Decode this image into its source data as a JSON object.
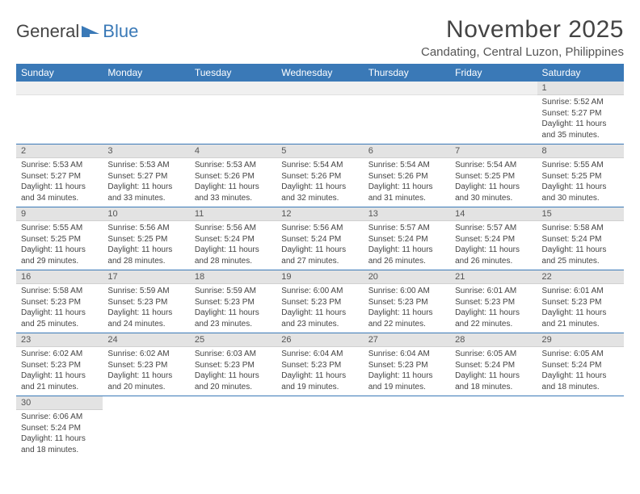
{
  "brand": {
    "part1": "General",
    "part2": "Blue"
  },
  "title": "November 2025",
  "subtitle": "Candating, Central Luzon, Philippines",
  "colors": {
    "header_bg": "#3a79b7",
    "header_fg": "#ffffff",
    "daynum_bg": "#e3e3e3",
    "row_divider": "#3a79b7",
    "text": "#444444"
  },
  "day_headers": [
    "Sunday",
    "Monday",
    "Tuesday",
    "Wednesday",
    "Thursday",
    "Friday",
    "Saturday"
  ],
  "weeks": [
    [
      {
        "n": "",
        "blank": true
      },
      {
        "n": "",
        "blank": true
      },
      {
        "n": "",
        "blank": true
      },
      {
        "n": "",
        "blank": true
      },
      {
        "n": "",
        "blank": true
      },
      {
        "n": "",
        "blank": true
      },
      {
        "n": "1",
        "sunrise": "5:52 AM",
        "sunset": "5:27 PM",
        "daylight": "11 hours and 35 minutes."
      }
    ],
    [
      {
        "n": "2",
        "sunrise": "5:53 AM",
        "sunset": "5:27 PM",
        "daylight": "11 hours and 34 minutes."
      },
      {
        "n": "3",
        "sunrise": "5:53 AM",
        "sunset": "5:27 PM",
        "daylight": "11 hours and 33 minutes."
      },
      {
        "n": "4",
        "sunrise": "5:53 AM",
        "sunset": "5:26 PM",
        "daylight": "11 hours and 33 minutes."
      },
      {
        "n": "5",
        "sunrise": "5:54 AM",
        "sunset": "5:26 PM",
        "daylight": "11 hours and 32 minutes."
      },
      {
        "n": "6",
        "sunrise": "5:54 AM",
        "sunset": "5:26 PM",
        "daylight": "11 hours and 31 minutes."
      },
      {
        "n": "7",
        "sunrise": "5:54 AM",
        "sunset": "5:25 PM",
        "daylight": "11 hours and 30 minutes."
      },
      {
        "n": "8",
        "sunrise": "5:55 AM",
        "sunset": "5:25 PM",
        "daylight": "11 hours and 30 minutes."
      }
    ],
    [
      {
        "n": "9",
        "sunrise": "5:55 AM",
        "sunset": "5:25 PM",
        "daylight": "11 hours and 29 minutes."
      },
      {
        "n": "10",
        "sunrise": "5:56 AM",
        "sunset": "5:25 PM",
        "daylight": "11 hours and 28 minutes."
      },
      {
        "n": "11",
        "sunrise": "5:56 AM",
        "sunset": "5:24 PM",
        "daylight": "11 hours and 28 minutes."
      },
      {
        "n": "12",
        "sunrise": "5:56 AM",
        "sunset": "5:24 PM",
        "daylight": "11 hours and 27 minutes."
      },
      {
        "n": "13",
        "sunrise": "5:57 AM",
        "sunset": "5:24 PM",
        "daylight": "11 hours and 26 minutes."
      },
      {
        "n": "14",
        "sunrise": "5:57 AM",
        "sunset": "5:24 PM",
        "daylight": "11 hours and 26 minutes."
      },
      {
        "n": "15",
        "sunrise": "5:58 AM",
        "sunset": "5:24 PM",
        "daylight": "11 hours and 25 minutes."
      }
    ],
    [
      {
        "n": "16",
        "sunrise": "5:58 AM",
        "sunset": "5:23 PM",
        "daylight": "11 hours and 25 minutes."
      },
      {
        "n": "17",
        "sunrise": "5:59 AM",
        "sunset": "5:23 PM",
        "daylight": "11 hours and 24 minutes."
      },
      {
        "n": "18",
        "sunrise": "5:59 AM",
        "sunset": "5:23 PM",
        "daylight": "11 hours and 23 minutes."
      },
      {
        "n": "19",
        "sunrise": "6:00 AM",
        "sunset": "5:23 PM",
        "daylight": "11 hours and 23 minutes."
      },
      {
        "n": "20",
        "sunrise": "6:00 AM",
        "sunset": "5:23 PM",
        "daylight": "11 hours and 22 minutes."
      },
      {
        "n": "21",
        "sunrise": "6:01 AM",
        "sunset": "5:23 PM",
        "daylight": "11 hours and 22 minutes."
      },
      {
        "n": "22",
        "sunrise": "6:01 AM",
        "sunset": "5:23 PM",
        "daylight": "11 hours and 21 minutes."
      }
    ],
    [
      {
        "n": "23",
        "sunrise": "6:02 AM",
        "sunset": "5:23 PM",
        "daylight": "11 hours and 21 minutes."
      },
      {
        "n": "24",
        "sunrise": "6:02 AM",
        "sunset": "5:23 PM",
        "daylight": "11 hours and 20 minutes."
      },
      {
        "n": "25",
        "sunrise": "6:03 AM",
        "sunset": "5:23 PM",
        "daylight": "11 hours and 20 minutes."
      },
      {
        "n": "26",
        "sunrise": "6:04 AM",
        "sunset": "5:23 PM",
        "daylight": "11 hours and 19 minutes."
      },
      {
        "n": "27",
        "sunrise": "6:04 AM",
        "sunset": "5:23 PM",
        "daylight": "11 hours and 19 minutes."
      },
      {
        "n": "28",
        "sunrise": "6:05 AM",
        "sunset": "5:24 PM",
        "daylight": "11 hours and 18 minutes."
      },
      {
        "n": "29",
        "sunrise": "6:05 AM",
        "sunset": "5:24 PM",
        "daylight": "11 hours and 18 minutes."
      }
    ],
    [
      {
        "n": "30",
        "sunrise": "6:06 AM",
        "sunset": "5:24 PM",
        "daylight": "11 hours and 18 minutes."
      },
      {
        "n": "",
        "blank": true
      },
      {
        "n": "",
        "blank": true
      },
      {
        "n": "",
        "blank": true
      },
      {
        "n": "",
        "blank": true
      },
      {
        "n": "",
        "blank": true
      },
      {
        "n": "",
        "blank": true
      }
    ]
  ],
  "labels": {
    "sunrise": "Sunrise:",
    "sunset": "Sunset:",
    "daylight": "Daylight:"
  }
}
